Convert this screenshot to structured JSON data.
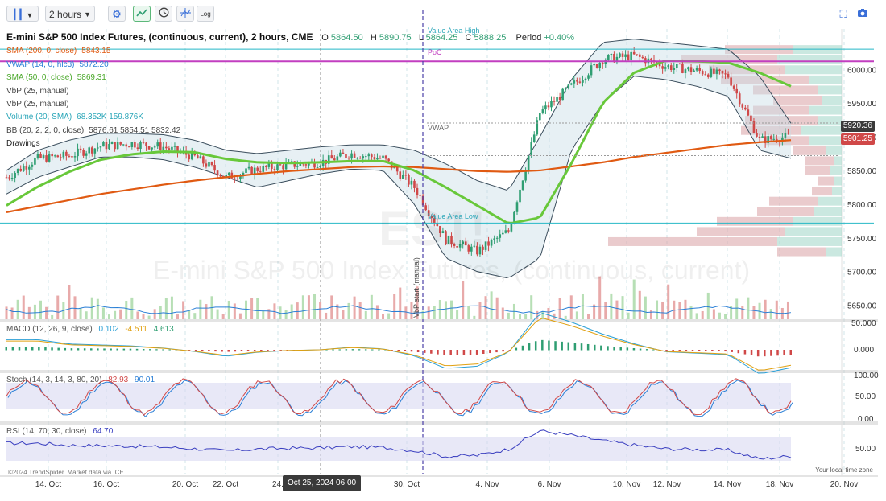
{
  "toolbar": {
    "timeframe_value": "2 hours",
    "icons": [
      "bars-chart-icon",
      "chevron-down-icon",
      "settings-gear-icon",
      "line-chart-icon",
      "clock-icon",
      "crosshair-icon",
      "log-scale-icon",
      "fullscreen-icon",
      "camera-icon"
    ],
    "log_label": "Log"
  },
  "legend": {
    "title": "E-mini S&P 500 Index Futures, (continuous, current), 2 hours, CME",
    "open_label": "O",
    "open_value": "5864.50",
    "high_label": "H",
    "high_value": "5890.75",
    "low_label": "L",
    "low_value": "5864.25",
    "close_label": "C",
    "close_value": "5888.25",
    "period_label": "Period",
    "period_value": "+0.40%",
    "indicators": [
      {
        "label": "SMA (200, 0, close)",
        "value": "5843.15",
        "color": "#e05a12"
      },
      {
        "label": "VWAP (14, 0, hlc3)",
        "value": "5872.20",
        "color": "#2a7fd6"
      },
      {
        "label": "SMA (50, 0, close)",
        "value": "5869.31",
        "color": "#68c83a"
      },
      {
        "label": "VbP (25, manual)",
        "value": "",
        "color": "#444444"
      },
      {
        "label": "VbP (25, manual)",
        "value": "",
        "color": "#444444"
      },
      {
        "label": "Volume (20, SMA)",
        "value": "68.352K  159.876K",
        "color": "#2aa6b8"
      },
      {
        "label": "BB (20, 2, 2, 0, close)",
        "value": "5876.61  5854.51  5832.42",
        "color": "#444444"
      },
      {
        "label": "Drawings",
        "value": "",
        "color": "#222222"
      }
    ]
  },
  "annotations": {
    "value_area_high": "Value Area High",
    "poc": "PoC",
    "vwap": "VWAP",
    "value_area_low": "Value Area Low",
    "vbp_start": "VbP start (manual)",
    "watermark_symbol": "ES1!",
    "watermark_name": "E-mini S&P 500 Index Futures, (continuous, current)"
  },
  "price_tags": {
    "upper": "5920.36",
    "last": "5901.25"
  },
  "cursor_label": "Oct 25, 2024 06:00",
  "credit": "©2024 TrendSpider. Market data via ICE.",
  "timezone_label": "Your local time zone",
  "sub_panels": {
    "macd": {
      "label": "MACD (12, 26, 9, close)",
      "v1": "0.102",
      "v2": "-4.511",
      "v3": "4.613",
      "ticks": [
        "50.000",
        "0.000"
      ]
    },
    "stoch": {
      "label": "Stoch (14, 3, 14, 3, 80, 20)",
      "v1": "82.93",
      "v2": "90.01",
      "ticks": [
        "100.00",
        "50.00",
        "0.00"
      ]
    },
    "rsi": {
      "label": "RSI (14, 70, 30, close)",
      "v1": "64.70",
      "ticks": [
        "50.00"
      ]
    }
  },
  "colors": {
    "up": "#2f9e72",
    "down": "#d04848",
    "sma200": "#e05a12",
    "sma50": "#68c83a",
    "bb": "#3a4d5c",
    "poc": "#c23fc0",
    "value_area": "#25b8c6",
    "vbp_start": "#4b3fa8",
    "rsi": "#3a3fc0"
  },
  "chart_data": {
    "type": "line",
    "title": "E-mini S&P 500 Index Futures, (continuous, current), 2 hours, CME",
    "x_labels": [
      "14. Oct",
      "16. Oct",
      "20. Oct",
      "22. Oct",
      "24.",
      "30. Oct",
      "4. Nov",
      "6. Nov",
      "10. Nov",
      "12. Nov",
      "14. Nov",
      "18. Nov",
      "20. Nov"
    ],
    "y_ticks": [
      6000,
      5950,
      5900,
      5850,
      5800,
      5750,
      5700,
      5650
    ],
    "ylim": [
      5628,
      6060
    ],
    "value_area_high": 6030,
    "poc": 6012,
    "value_area_low": 5772,
    "series": [
      {
        "name": "Close",
        "x": [
          "Oct 14",
          "Oct 15",
          "Oct 16",
          "Oct 17",
          "Oct 18",
          "Oct 21",
          "Oct 22",
          "Oct 23",
          "Oct 24",
          "Oct 25",
          "Oct 28",
          "Oct 29",
          "Oct 30",
          "Oct 31",
          "Nov 1",
          "Nov 4",
          "Nov 5",
          "Nov 6",
          "Nov 7",
          "Nov 8",
          "Nov 11",
          "Nov 12",
          "Nov 13",
          "Nov 14",
          "Nov 15",
          "Nov 18"
        ],
        "values": [
          5840,
          5868,
          5872,
          5886,
          5890,
          5885,
          5870,
          5840,
          5852,
          5858,
          5862,
          5875,
          5868,
          5825,
          5748,
          5730,
          5760,
          5935,
          5975,
          6015,
          6020,
          6005,
          5998,
          5990,
          5895,
          5901
        ]
      },
      {
        "name": "SMA (200, 0, close)",
        "values": [
          5788,
          5797,
          5806,
          5815,
          5822,
          5829,
          5835,
          5840,
          5845,
          5849,
          5852,
          5855,
          5856,
          5855,
          5852,
          5849,
          5848,
          5850,
          5856,
          5862,
          5870,
          5876,
          5882,
          5888,
          5892,
          5895
        ]
      },
      {
        "name": "SMA (50, 0, close)",
        "values": [
          5798,
          5826,
          5848,
          5866,
          5874,
          5878,
          5877,
          5867,
          5862,
          5861,
          5862,
          5864,
          5864,
          5850,
          5825,
          5798,
          5771,
          5780,
          5860,
          5950,
          5995,
          6013,
          6012,
          6010,
          5995,
          5975
        ]
      },
      {
        "name": "BB upper",
        "values": [
          5850,
          5880,
          5895,
          5905,
          5905,
          5903,
          5895,
          5880,
          5875,
          5880,
          5885,
          5888,
          5888,
          5880,
          5860,
          5835,
          5820,
          5900,
          5985,
          6040,
          6045,
          6040,
          6035,
          6030,
          5990,
          5920
        ]
      },
      {
        "name": "BB lower",
        "values": [
          5815,
          5840,
          5855,
          5870,
          5870,
          5866,
          5855,
          5840,
          5825,
          5835,
          5845,
          5852,
          5850,
          5800,
          5720,
          5700,
          5690,
          5720,
          5880,
          5950,
          5990,
          5985,
          5975,
          5960,
          5880,
          5868
        ]
      }
    ]
  }
}
